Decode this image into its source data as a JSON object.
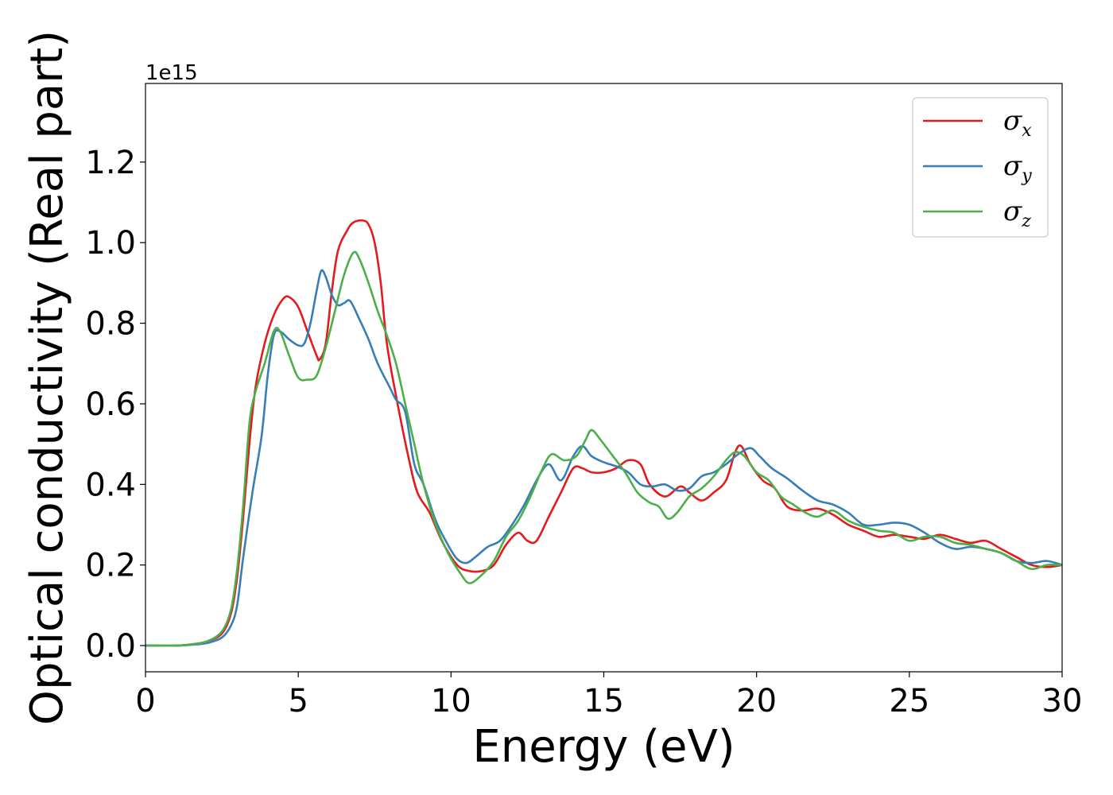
{
  "chart_data": {
    "type": "line",
    "xlabel": "Energy (eV)",
    "ylabel": "Optical conductivity (Real part)",
    "y_offset_text": "1e15",
    "xlim": [
      0,
      30
    ],
    "ylim": [
      -0.065,
      1.395
    ],
    "x_ticks": [
      0,
      5,
      10,
      15,
      20,
      25,
      30
    ],
    "x_tick_labels": [
      "0",
      "5",
      "10",
      "15",
      "20",
      "25",
      "30"
    ],
    "y_ticks": [
      0.0,
      0.2,
      0.4,
      0.6,
      0.8,
      1.0,
      1.2
    ],
    "y_tick_labels": [
      "0.0",
      "0.2",
      "0.4",
      "0.6",
      "0.8",
      "1.0",
      "1.2"
    ],
    "grid": false,
    "legend_position": "top-right",
    "series": [
      {
        "name": "σx",
        "legend_symbol": "σ",
        "legend_sub": "x",
        "color": "#e41a1c",
        "points": [
          [
            0,
            0
          ],
          [
            1,
            0.0
          ],
          [
            1.5,
            0.003
          ],
          [
            2,
            0.01
          ],
          [
            2.5,
            0.03
          ],
          [
            2.8,
            0.08
          ],
          [
            3.0,
            0.17
          ],
          [
            3.2,
            0.32
          ],
          [
            3.4,
            0.5
          ],
          [
            3.6,
            0.64
          ],
          [
            3.9,
            0.75
          ],
          [
            4.2,
            0.82
          ],
          [
            4.5,
            0.86
          ],
          [
            4.7,
            0.865
          ],
          [
            5.0,
            0.84
          ],
          [
            5.3,
            0.78
          ],
          [
            5.6,
            0.72
          ],
          [
            5.7,
            0.71
          ],
          [
            5.9,
            0.75
          ],
          [
            6.1,
            0.88
          ],
          [
            6.3,
            0.98
          ],
          [
            6.6,
            1.03
          ],
          [
            6.8,
            1.05
          ],
          [
            7.1,
            1.055
          ],
          [
            7.3,
            1.045
          ],
          [
            7.5,
            1.0
          ],
          [
            7.7,
            0.9
          ],
          [
            7.9,
            0.75
          ],
          [
            8.2,
            0.62
          ],
          [
            8.6,
            0.47
          ],
          [
            8.9,
            0.38
          ],
          [
            9.3,
            0.33
          ],
          [
            9.7,
            0.26
          ],
          [
            10.2,
            0.2
          ],
          [
            10.6,
            0.185
          ],
          [
            11.0,
            0.185
          ],
          [
            11.4,
            0.2
          ],
          [
            11.8,
            0.25
          ],
          [
            12.2,
            0.28
          ],
          [
            12.5,
            0.26
          ],
          [
            12.8,
            0.26
          ],
          [
            13.2,
            0.32
          ],
          [
            13.6,
            0.38
          ],
          [
            14.0,
            0.44
          ],
          [
            14.3,
            0.44
          ],
          [
            14.6,
            0.43
          ],
          [
            15.0,
            0.43
          ],
          [
            15.4,
            0.44
          ],
          [
            15.8,
            0.46
          ],
          [
            16.2,
            0.45
          ],
          [
            16.5,
            0.4
          ],
          [
            17.0,
            0.37
          ],
          [
            17.5,
            0.395
          ],
          [
            17.8,
            0.38
          ],
          [
            18.2,
            0.36
          ],
          [
            18.6,
            0.38
          ],
          [
            19.0,
            0.41
          ],
          [
            19.3,
            0.48
          ],
          [
            19.5,
            0.495
          ],
          [
            19.8,
            0.45
          ],
          [
            20.2,
            0.41
          ],
          [
            20.6,
            0.39
          ],
          [
            21.0,
            0.345
          ],
          [
            21.5,
            0.335
          ],
          [
            22.0,
            0.34
          ],
          [
            22.5,
            0.325
          ],
          [
            23.0,
            0.3
          ],
          [
            23.5,
            0.285
          ],
          [
            24.0,
            0.27
          ],
          [
            24.5,
            0.275
          ],
          [
            25.0,
            0.27
          ],
          [
            25.5,
            0.265
          ],
          [
            26.0,
            0.275
          ],
          [
            26.5,
            0.265
          ],
          [
            27.0,
            0.255
          ],
          [
            27.5,
            0.26
          ],
          [
            28.0,
            0.24
          ],
          [
            28.5,
            0.22
          ],
          [
            29.0,
            0.2
          ],
          [
            29.5,
            0.195
          ],
          [
            30.0,
            0.2
          ]
        ]
      },
      {
        "name": "σy",
        "legend_symbol": "σ",
        "legend_sub": "y",
        "color": "#377eb8",
        "points": [
          [
            0,
            0
          ],
          [
            1,
            0.0
          ],
          [
            1.5,
            0.002
          ],
          [
            2,
            0.006
          ],
          [
            2.5,
            0.02
          ],
          [
            2.8,
            0.05
          ],
          [
            3.0,
            0.1
          ],
          [
            3.2,
            0.22
          ],
          [
            3.5,
            0.38
          ],
          [
            3.8,
            0.52
          ],
          [
            4.0,
            0.67
          ],
          [
            4.2,
            0.77
          ],
          [
            4.4,
            0.78
          ],
          [
            4.7,
            0.76
          ],
          [
            5.0,
            0.745
          ],
          [
            5.2,
            0.75
          ],
          [
            5.4,
            0.8
          ],
          [
            5.6,
            0.88
          ],
          [
            5.75,
            0.93
          ],
          [
            5.9,
            0.915
          ],
          [
            6.1,
            0.87
          ],
          [
            6.3,
            0.845
          ],
          [
            6.5,
            0.85
          ],
          [
            6.7,
            0.855
          ],
          [
            7.0,
            0.81
          ],
          [
            7.3,
            0.76
          ],
          [
            7.6,
            0.7
          ],
          [
            8.0,
            0.64
          ],
          [
            8.2,
            0.61
          ],
          [
            8.5,
            0.58
          ],
          [
            8.8,
            0.45
          ],
          [
            9.1,
            0.4
          ],
          [
            9.5,
            0.31
          ],
          [
            9.9,
            0.25
          ],
          [
            10.2,
            0.215
          ],
          [
            10.5,
            0.205
          ],
          [
            10.8,
            0.22
          ],
          [
            11.2,
            0.245
          ],
          [
            11.6,
            0.26
          ],
          [
            12.0,
            0.3
          ],
          [
            12.4,
            0.35
          ],
          [
            12.8,
            0.41
          ],
          [
            13.2,
            0.45
          ],
          [
            13.6,
            0.41
          ],
          [
            14.0,
            0.47
          ],
          [
            14.3,
            0.495
          ],
          [
            14.6,
            0.47
          ],
          [
            15.0,
            0.455
          ],
          [
            15.4,
            0.445
          ],
          [
            15.8,
            0.43
          ],
          [
            16.2,
            0.4
          ],
          [
            16.6,
            0.395
          ],
          [
            17.0,
            0.4
          ],
          [
            17.4,
            0.385
          ],
          [
            17.8,
            0.39
          ],
          [
            18.2,
            0.42
          ],
          [
            18.6,
            0.43
          ],
          [
            19.0,
            0.45
          ],
          [
            19.4,
            0.475
          ],
          [
            19.8,
            0.49
          ],
          [
            20.1,
            0.47
          ],
          [
            20.5,
            0.44
          ],
          [
            21.0,
            0.415
          ],
          [
            21.5,
            0.385
          ],
          [
            22.0,
            0.36
          ],
          [
            22.5,
            0.35
          ],
          [
            23.0,
            0.33
          ],
          [
            23.5,
            0.3
          ],
          [
            24.0,
            0.3
          ],
          [
            24.5,
            0.305
          ],
          [
            25.0,
            0.3
          ],
          [
            25.5,
            0.28
          ],
          [
            26.0,
            0.255
          ],
          [
            26.5,
            0.24
          ],
          [
            27.0,
            0.245
          ],
          [
            27.5,
            0.24
          ],
          [
            28.0,
            0.23
          ],
          [
            28.5,
            0.21
          ],
          [
            29.0,
            0.205
          ],
          [
            29.5,
            0.21
          ],
          [
            30.0,
            0.2
          ]
        ]
      },
      {
        "name": "σz",
        "legend_symbol": "σ",
        "legend_sub": "z",
        "color": "#4daf4a",
        "points": [
          [
            0,
            0
          ],
          [
            1,
            0.0
          ],
          [
            1.5,
            0.003
          ],
          [
            2,
            0.01
          ],
          [
            2.5,
            0.035
          ],
          [
            2.8,
            0.09
          ],
          [
            3.0,
            0.19
          ],
          [
            3.2,
            0.35
          ],
          [
            3.4,
            0.55
          ],
          [
            3.6,
            0.63
          ],
          [
            3.9,
            0.7
          ],
          [
            4.2,
            0.78
          ],
          [
            4.4,
            0.78
          ],
          [
            4.7,
            0.72
          ],
          [
            5.0,
            0.665
          ],
          [
            5.3,
            0.66
          ],
          [
            5.6,
            0.67
          ],
          [
            5.9,
            0.74
          ],
          [
            6.2,
            0.83
          ],
          [
            6.5,
            0.92
          ],
          [
            6.8,
            0.975
          ],
          [
            7.0,
            0.96
          ],
          [
            7.3,
            0.9
          ],
          [
            7.6,
            0.83
          ],
          [
            7.9,
            0.77
          ],
          [
            8.2,
            0.7
          ],
          [
            8.5,
            0.6
          ],
          [
            8.8,
            0.5
          ],
          [
            9.1,
            0.4
          ],
          [
            9.5,
            0.3
          ],
          [
            9.9,
            0.23
          ],
          [
            10.3,
            0.18
          ],
          [
            10.6,
            0.155
          ],
          [
            11.0,
            0.175
          ],
          [
            11.4,
            0.21
          ],
          [
            11.8,
            0.27
          ],
          [
            12.2,
            0.31
          ],
          [
            12.6,
            0.37
          ],
          [
            13.0,
            0.44
          ],
          [
            13.3,
            0.475
          ],
          [
            13.7,
            0.46
          ],
          [
            14.1,
            0.47
          ],
          [
            14.4,
            0.51
          ],
          [
            14.6,
            0.535
          ],
          [
            14.9,
            0.51
          ],
          [
            15.3,
            0.47
          ],
          [
            15.7,
            0.43
          ],
          [
            16.1,
            0.38
          ],
          [
            16.5,
            0.355
          ],
          [
            16.8,
            0.345
          ],
          [
            17.1,
            0.315
          ],
          [
            17.4,
            0.33
          ],
          [
            17.8,
            0.37
          ],
          [
            18.2,
            0.39
          ],
          [
            18.6,
            0.42
          ],
          [
            19.0,
            0.46
          ],
          [
            19.3,
            0.48
          ],
          [
            19.6,
            0.47
          ],
          [
            20.0,
            0.43
          ],
          [
            20.4,
            0.41
          ],
          [
            20.8,
            0.37
          ],
          [
            21.2,
            0.35
          ],
          [
            21.6,
            0.33
          ],
          [
            22.0,
            0.32
          ],
          [
            22.5,
            0.335
          ],
          [
            23.0,
            0.31
          ],
          [
            23.5,
            0.295
          ],
          [
            24.0,
            0.285
          ],
          [
            24.5,
            0.28
          ],
          [
            25.0,
            0.26
          ],
          [
            25.5,
            0.27
          ],
          [
            26.0,
            0.27
          ],
          [
            26.5,
            0.255
          ],
          [
            27.0,
            0.25
          ],
          [
            27.5,
            0.24
          ],
          [
            28.0,
            0.23
          ],
          [
            28.5,
            0.21
          ],
          [
            29.0,
            0.19
          ],
          [
            29.5,
            0.2
          ],
          [
            30.0,
            0.2
          ]
        ]
      }
    ]
  }
}
